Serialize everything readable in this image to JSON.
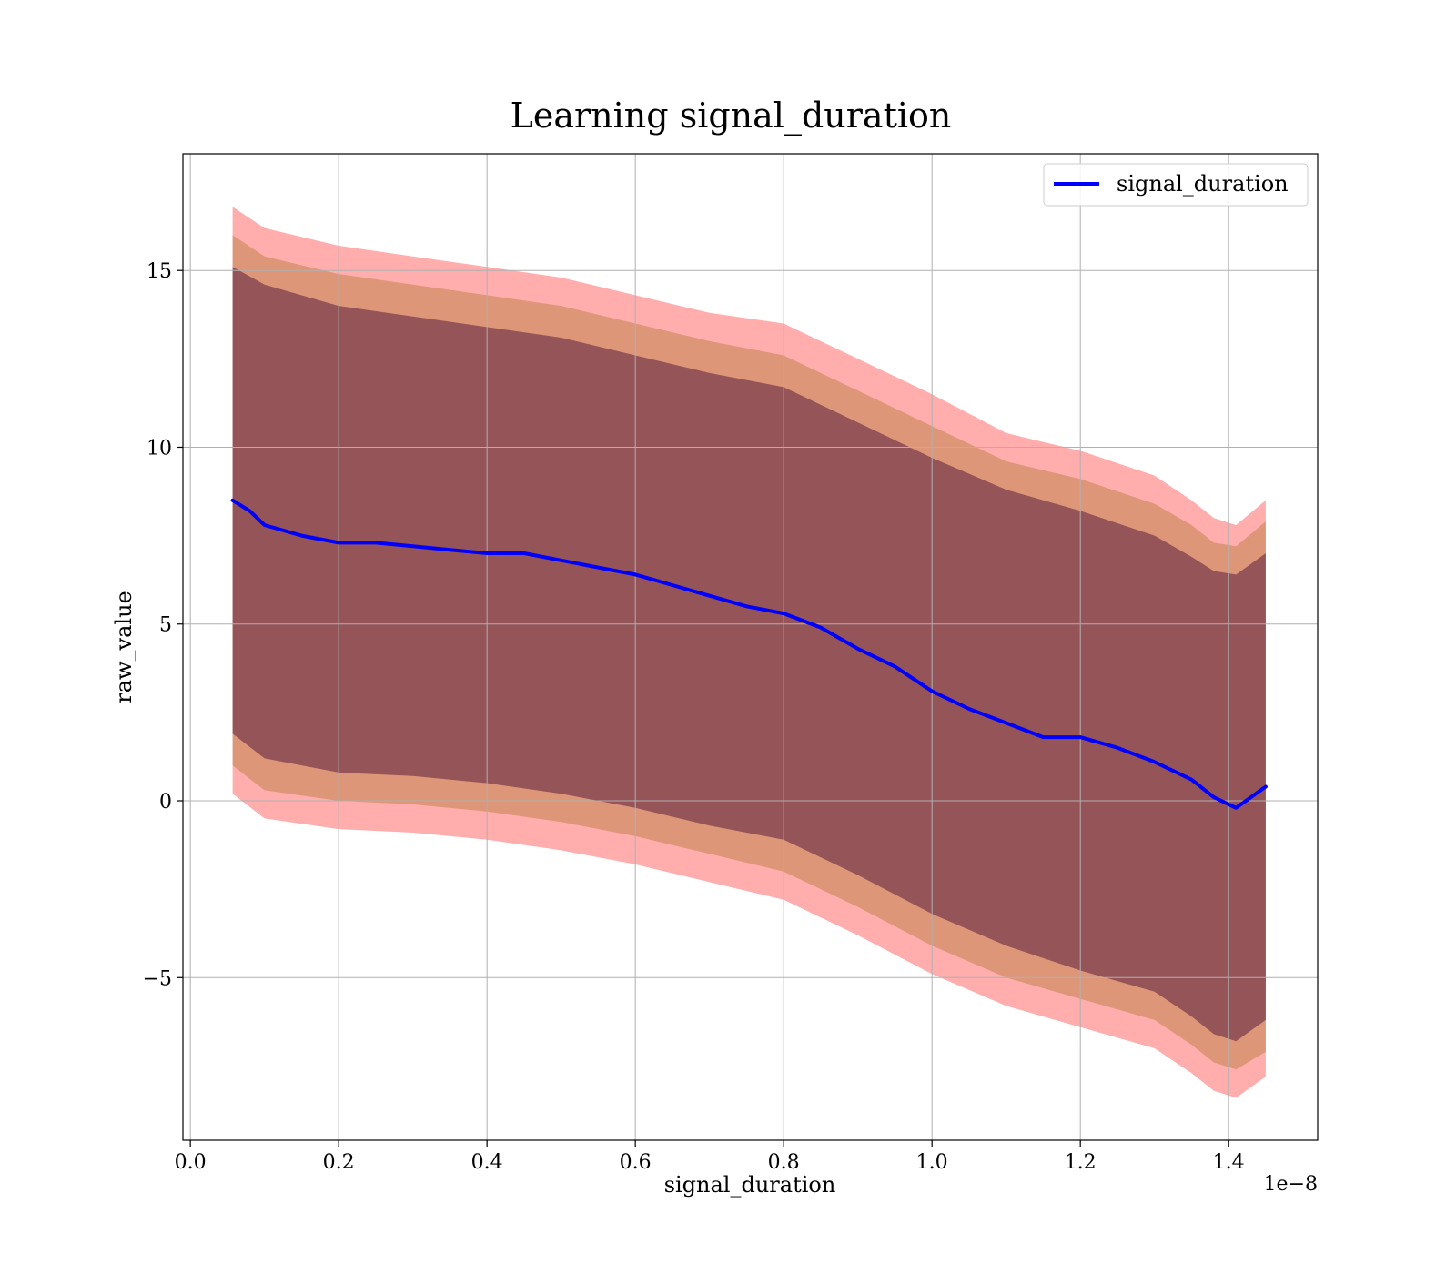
{
  "chart_data": {
    "type": "line",
    "title": "Learning signal_duration",
    "xlabel": "signal_duration",
    "ylabel": "raw_value",
    "x_offset_label": "1e−8",
    "xlim": [
      -0.01,
      1.52
    ],
    "ylim": [
      -9.6,
      18.3
    ],
    "x_ticks": [
      0.0,
      0.2,
      0.4,
      0.6,
      0.8,
      1.0,
      1.2,
      1.4
    ],
    "x_tick_labels": [
      "0.0",
      "0.2",
      "0.4",
      "0.6",
      "0.8",
      "1.0",
      "1.2",
      "1.4"
    ],
    "y_ticks": [
      -5,
      0,
      5,
      10,
      15
    ],
    "y_tick_labels": [
      "−5",
      "0",
      "5",
      "10",
      "15"
    ],
    "grid": true,
    "legend_position": "top-right",
    "series": [
      {
        "name": "signal_duration",
        "color": "#0000ff",
        "x": [
          0.057,
          0.08,
          0.1,
          0.15,
          0.2,
          0.25,
          0.3,
          0.35,
          0.4,
          0.45,
          0.5,
          0.55,
          0.6,
          0.65,
          0.7,
          0.75,
          0.8,
          0.85,
          0.9,
          0.95,
          1.0,
          1.05,
          1.1,
          1.15,
          1.2,
          1.25,
          1.3,
          1.35,
          1.38,
          1.41,
          1.45
        ],
        "y": [
          8.5,
          8.2,
          7.8,
          7.5,
          7.3,
          7.3,
          7.2,
          7.1,
          7.0,
          7.0,
          6.8,
          6.6,
          6.4,
          6.1,
          5.8,
          5.5,
          5.3,
          4.9,
          4.3,
          3.8,
          3.1,
          2.6,
          2.2,
          1.8,
          1.8,
          1.5,
          1.1,
          0.6,
          0.1,
          -0.2,
          0.4
        ]
      }
    ],
    "bands": [
      {
        "color": "#ff0000",
        "opacity": 0.32,
        "x": [
          0.057,
          0.1,
          0.2,
          0.3,
          0.4,
          0.5,
          0.6,
          0.7,
          0.8,
          0.9,
          1.0,
          1.1,
          1.2,
          1.3,
          1.35,
          1.38,
          1.41,
          1.45
        ],
        "upper": [
          16.8,
          16.2,
          15.7,
          15.4,
          15.1,
          14.8,
          14.3,
          13.8,
          13.5,
          12.5,
          11.5,
          10.4,
          9.9,
          9.2,
          8.5,
          8.0,
          7.8,
          8.5
        ],
        "lower": [
          0.2,
          -0.5,
          -0.8,
          -0.9,
          -1.1,
          -1.4,
          -1.8,
          -2.3,
          -2.8,
          -3.8,
          -4.9,
          -5.8,
          -6.4,
          -7.0,
          -7.7,
          -8.2,
          -8.4,
          -7.8
        ]
      },
      {
        "color": "#b57a3a",
        "opacity": 0.45,
        "x": [
          0.057,
          0.1,
          0.2,
          0.3,
          0.4,
          0.5,
          0.6,
          0.7,
          0.8,
          0.9,
          1.0,
          1.1,
          1.2,
          1.3,
          1.35,
          1.38,
          1.41,
          1.45
        ],
        "upper": [
          16.0,
          15.4,
          14.9,
          14.6,
          14.3,
          14.0,
          13.5,
          13.0,
          12.6,
          11.6,
          10.6,
          9.6,
          9.1,
          8.4,
          7.8,
          7.3,
          7.2,
          7.9
        ],
        "lower": [
          1.0,
          0.3,
          0.0,
          -0.1,
          -0.3,
          -0.6,
          -1.0,
          -1.5,
          -2.0,
          -3.0,
          -4.1,
          -5.0,
          -5.6,
          -6.2,
          -6.9,
          -7.4,
          -7.6,
          -7.1
        ]
      },
      {
        "color": "#5a1f3d",
        "opacity": 0.55,
        "x": [
          0.057,
          0.1,
          0.2,
          0.3,
          0.4,
          0.5,
          0.6,
          0.7,
          0.8,
          0.9,
          1.0,
          1.1,
          1.2,
          1.3,
          1.35,
          1.38,
          1.41,
          1.45
        ],
        "upper": [
          15.1,
          14.6,
          14.0,
          13.7,
          13.4,
          13.1,
          12.6,
          12.1,
          11.7,
          10.7,
          9.7,
          8.8,
          8.2,
          7.5,
          6.9,
          6.5,
          6.4,
          7.0
        ],
        "lower": [
          1.9,
          1.2,
          0.8,
          0.7,
          0.5,
          0.2,
          -0.2,
          -0.7,
          -1.1,
          -2.1,
          -3.2,
          -4.1,
          -4.8,
          -5.4,
          -6.1,
          -6.6,
          -6.8,
          -6.2
        ]
      }
    ]
  }
}
